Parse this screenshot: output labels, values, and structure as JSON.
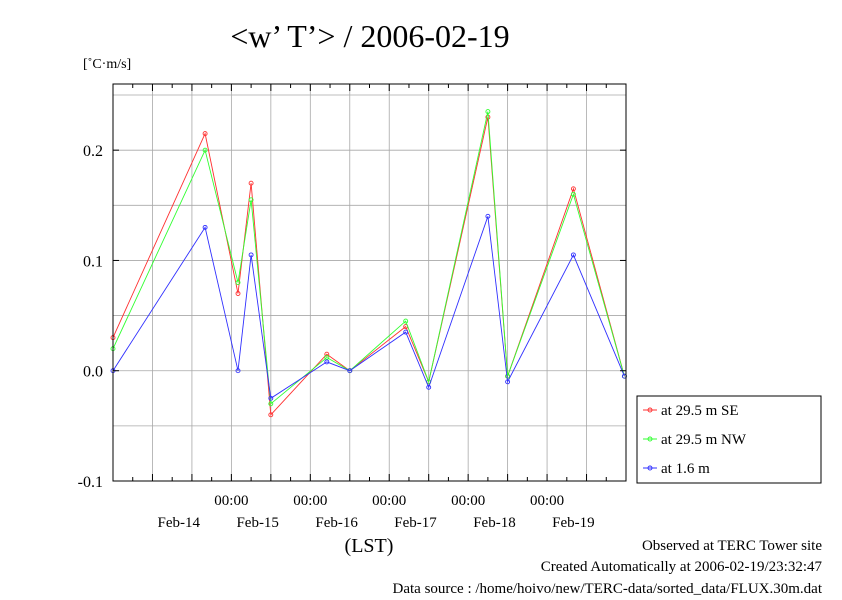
{
  "chart_data": {
    "type": "line",
    "title": "<w’ T’> / 2006-02-19",
    "unit_label": "[˚C·m/s]",
    "xlabel": "(LST)",
    "x_range": [
      "2006-02-13T12:00",
      "2006-02-19T23:30"
    ],
    "x_sampling": "30 min",
    "ylim": [
      -0.1,
      0.26
    ],
    "yticks": [
      -0.1,
      0.0,
      0.1,
      0.2
    ],
    "ytick_labels": [
      "-0.1",
      "0.0",
      "0.1",
      "0.2"
    ],
    "xtick_labels": [
      {
        "time": "2006-02-15T00:00",
        "label": "00:00"
      },
      {
        "time": "2006-02-16T00:00",
        "label": "00:00"
      },
      {
        "time": "2006-02-17T00:00",
        "label": "00:00"
      },
      {
        "time": "2006-02-18T00:00",
        "label": "00:00"
      },
      {
        "time": "2006-02-19T00:00",
        "label": "00:00"
      }
    ],
    "day_labels": [
      {
        "time": "2006-02-14T08:00",
        "label": "Feb-14"
      },
      {
        "time": "2006-02-15T08:00",
        "label": "Feb-15"
      },
      {
        "time": "2006-02-16T08:00",
        "label": "Feb-16"
      },
      {
        "time": "2006-02-17T08:00",
        "label": "Feb-17"
      },
      {
        "time": "2006-02-18T08:00",
        "label": "Feb-18"
      },
      {
        "time": "2006-02-19T08:00",
        "label": "Feb-19"
      }
    ],
    "grid": true,
    "legend_position": "right",
    "series": [
      {
        "name": "at 29.5 m SE",
        "color": "#ff3030",
        "x": [
          "2006-02-13T12:00",
          "2006-02-14T16:00",
          "2006-02-15T02:00",
          "2006-02-15T06:00",
          "2006-02-15T12:00",
          "2006-02-16T05:00",
          "2006-02-16T12:00",
          "2006-02-17T05:00",
          "2006-02-17T12:00",
          "2006-02-18T06:00",
          "2006-02-18T12:00",
          "2006-02-19T08:00",
          "2006-02-19T23:30"
        ],
        "values": [
          0.03,
          0.215,
          0.07,
          0.17,
          -0.04,
          0.015,
          0.0,
          0.04,
          -0.01,
          0.23,
          -0.005,
          0.165,
          -0.005
        ]
      },
      {
        "name": "at 29.5 m NW",
        "color": "#30ff30",
        "x": [
          "2006-02-13T12:00",
          "2006-02-14T16:00",
          "2006-02-15T02:00",
          "2006-02-15T06:00",
          "2006-02-15T12:00",
          "2006-02-16T05:00",
          "2006-02-16T12:00",
          "2006-02-17T05:00",
          "2006-02-17T12:00",
          "2006-02-18T06:00",
          "2006-02-18T12:00",
          "2006-02-19T08:00",
          "2006-02-19T23:30"
        ],
        "values": [
          0.02,
          0.2,
          0.08,
          0.155,
          -0.03,
          0.012,
          0.0,
          0.045,
          -0.01,
          0.235,
          -0.005,
          0.16,
          -0.005
        ]
      },
      {
        "name": "at 1.6 m",
        "color": "#3030ff",
        "x": [
          "2006-02-13T12:00",
          "2006-02-14T16:00",
          "2006-02-15T02:00",
          "2006-02-15T06:00",
          "2006-02-15T12:00",
          "2006-02-16T05:00",
          "2006-02-16T12:00",
          "2006-02-17T05:00",
          "2006-02-17T12:00",
          "2006-02-18T06:00",
          "2006-02-18T12:00",
          "2006-02-19T08:00",
          "2006-02-19T23:30"
        ],
        "values": [
          0.0,
          0.13,
          0.0,
          0.105,
          -0.025,
          0.008,
          0.0,
          0.035,
          -0.015,
          0.14,
          -0.01,
          0.105,
          -0.005
        ]
      }
    ]
  },
  "footer": {
    "observed": "Observed at TERC Tower site",
    "created": "Created Automatically at 2006-02-19/23:32:47",
    "source": "Data source : /home/hoivo/new/TERC-data/sorted_data/FLUX.30m.dat"
  }
}
